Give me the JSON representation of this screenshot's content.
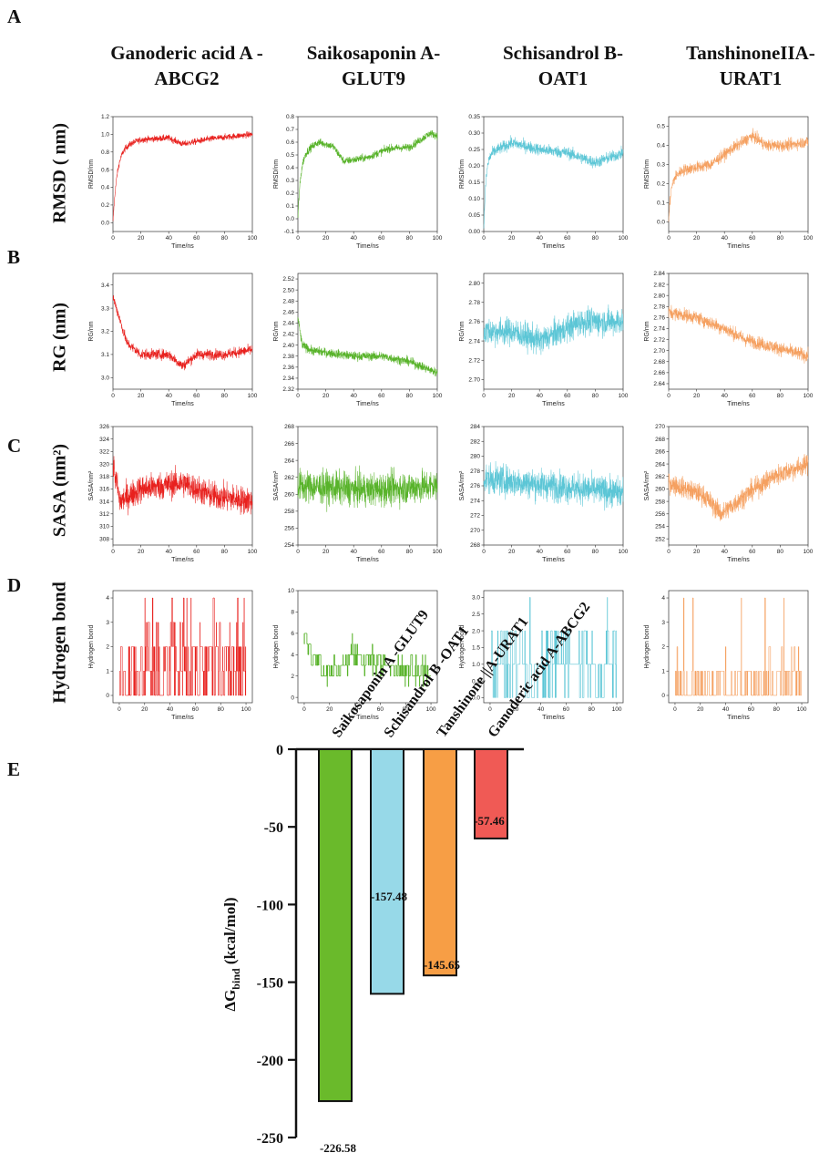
{
  "panels": {
    "A": "A",
    "B": "B",
    "C": "C",
    "D": "D",
    "E": "E"
  },
  "column_titles": [
    "Ganoderic acid A -\nABCG2",
    "Saikosaponin A-\nGLUT9",
    "Schisandrol B-\nOAT1",
    "TanshinoneIIA-\nURAT1"
  ],
  "row_labels": [
    "RMSD ( nm)",
    "RG (nm)",
    "SASA (nm²)",
    "Hydrogen bond"
  ],
  "colors": [
    "#e8211e",
    "#58b32a",
    "#5cc6d6",
    "#f5a060"
  ],
  "chart_data": [
    {
      "type": "line",
      "row": "RMSD",
      "compound": "Ganoderic acid A-ABCG2",
      "color": "#e8211e",
      "xlabel": "Time/ns",
      "ylabel": "RMSD/nm",
      "xlim": [
        0,
        100
      ],
      "xticks": [
        0,
        20,
        40,
        60,
        80,
        100
      ],
      "ylim": [
        -0.1,
        1.2
      ],
      "yticks": [
        "0.0",
        "0.2",
        "0.4",
        "0.6",
        "0.8",
        "1.0",
        "1.2"
      ],
      "start": 0.0,
      "rise": 0.84,
      "tau": 3,
      "trend": [
        [
          0,
          0.84
        ],
        [
          20,
          0.94
        ],
        [
          40,
          0.96
        ],
        [
          50,
          0.89
        ],
        [
          70,
          0.95
        ],
        [
          100,
          1.0
        ]
      ],
      "noise": 0.035,
      "style": "line"
    },
    {
      "type": "line",
      "row": "RMSD",
      "compound": "Saikosaponin A-GLUT9",
      "color": "#58b32a",
      "xlabel": "Time/ns",
      "ylabel": "RMSD/nm",
      "xlim": [
        0,
        100
      ],
      "xticks": [
        0,
        20,
        40,
        60,
        80,
        100
      ],
      "ylim": [
        -0.1,
        0.8
      ],
      "yticks": [
        "-0.1",
        "0.0",
        "0.1",
        "0.2",
        "0.3",
        "0.4",
        "0.5",
        "0.6",
        "0.7",
        "0.8"
      ],
      "start": 0.0,
      "rise": 0.5,
      "tau": 2,
      "trend": [
        [
          0,
          0.5
        ],
        [
          15,
          0.6
        ],
        [
          25,
          0.57
        ],
        [
          33,
          0.45
        ],
        [
          50,
          0.48
        ],
        [
          65,
          0.55
        ],
        [
          80,
          0.56
        ],
        [
          95,
          0.67
        ],
        [
          100,
          0.65
        ]
      ],
      "noise": 0.03,
      "style": "line"
    },
    {
      "type": "line",
      "row": "RMSD",
      "compound": "Schisandrol B-OAT1",
      "color": "#5cc6d6",
      "xlabel": "Time/ns",
      "ylabel": "RMSD/nm",
      "xlim": [
        0,
        100
      ],
      "xticks": [
        0,
        20,
        40,
        60,
        80,
        100
      ],
      "ylim": [
        0.0,
        0.35
      ],
      "yticks": [
        "0.00",
        "0.05",
        "0.10",
        "0.15",
        "0.20",
        "0.25",
        "0.30",
        "0.35"
      ],
      "start": 0.0,
      "rise": 0.23,
      "tau": 1.5,
      "trend": [
        [
          0,
          0.23
        ],
        [
          20,
          0.27
        ],
        [
          40,
          0.25
        ],
        [
          60,
          0.24
        ],
        [
          80,
          0.21
        ],
        [
          100,
          0.24
        ]
      ],
      "noise": 0.018,
      "style": "line"
    },
    {
      "type": "line",
      "row": "RMSD",
      "compound": "TanshinoneIIA-URAT1",
      "color": "#f5a060",
      "xlabel": "Time/ns",
      "ylabel": "RMSD/nm",
      "xlim": [
        0,
        100
      ],
      "xticks": [
        0,
        20,
        40,
        60,
        80,
        100
      ],
      "ylim": [
        -0.05,
        0.55
      ],
      "yticks": [
        "0.0",
        "0.1",
        "0.2",
        "0.3",
        "0.4",
        "0.5"
      ],
      "start": 0.0,
      "rise": 0.22,
      "tau": 1.5,
      "trend": [
        [
          0,
          0.22
        ],
        [
          10,
          0.27
        ],
        [
          30,
          0.3
        ],
        [
          45,
          0.38
        ],
        [
          60,
          0.45
        ],
        [
          70,
          0.4
        ],
        [
          85,
          0.4
        ],
        [
          100,
          0.42
        ]
      ],
      "noise": 0.03,
      "style": "line"
    },
    {
      "type": "line",
      "row": "RG",
      "compound": "Ganoderic acid A-ABCG2",
      "color": "#e8211e",
      "xlabel": "Time/ns",
      "ylabel": "RG/nm",
      "xlim": [
        0,
        100
      ],
      "xticks": [
        0,
        20,
        40,
        60,
        80,
        100
      ],
      "ylim": [
        2.95,
        3.45
      ],
      "yticks": [
        "3.0",
        "3.1",
        "3.2",
        "3.3",
        "3.4"
      ],
      "trend": [
        [
          0,
          3.35
        ],
        [
          5,
          3.25
        ],
        [
          10,
          3.15
        ],
        [
          20,
          3.1
        ],
        [
          40,
          3.1
        ],
        [
          50,
          3.05
        ],
        [
          60,
          3.1
        ],
        [
          80,
          3.1
        ],
        [
          100,
          3.12
        ]
      ],
      "noise": 0.022,
      "style": "line"
    },
    {
      "type": "line",
      "row": "RG",
      "compound": "Saikosaponin A-GLUT9",
      "color": "#58b32a",
      "xlabel": "Time/ns",
      "ylabel": "RG/nm",
      "xlim": [
        0,
        100
      ],
      "xticks": [
        0,
        20,
        40,
        60,
        80,
        100
      ],
      "ylim": [
        2.32,
        2.53
      ],
      "yticks": [
        "2.32",
        "2.34",
        "2.36",
        "2.38",
        "2.40",
        "2.42",
        "2.44",
        "2.46",
        "2.48",
        "2.50",
        "2.52"
      ],
      "trend": [
        [
          0,
          2.45
        ],
        [
          3,
          2.4
        ],
        [
          10,
          2.39
        ],
        [
          40,
          2.38
        ],
        [
          60,
          2.38
        ],
        [
          80,
          2.37
        ],
        [
          100,
          2.35
        ]
      ],
      "noise": 0.008,
      "style": "line"
    },
    {
      "type": "line",
      "row": "RG",
      "compound": "Schisandrol B-OAT1",
      "color": "#5cc6d6",
      "xlabel": "Time/ns",
      "ylabel": "RG/nm",
      "xlim": [
        0,
        100
      ],
      "xticks": [
        0,
        20,
        40,
        60,
        80,
        100
      ],
      "ylim": [
        2.69,
        2.81
      ],
      "yticks": [
        "2.70",
        "2.72",
        "2.74",
        "2.76",
        "2.78",
        "2.80"
      ],
      "trend": [
        [
          0,
          2.75
        ],
        [
          20,
          2.75
        ],
        [
          40,
          2.74
        ],
        [
          55,
          2.75
        ],
        [
          70,
          2.76
        ],
        [
          100,
          2.76
        ]
      ],
      "noise": 0.014,
      "style": "line"
    },
    {
      "type": "line",
      "row": "RG",
      "compound": "TanshinoneIIA-URAT1",
      "color": "#f5a060",
      "xlabel": "Time/ns",
      "ylabel": "RG/nm",
      "xlim": [
        0,
        100
      ],
      "xticks": [
        0,
        20,
        40,
        60,
        80,
        100
      ],
      "ylim": [
        2.63,
        2.84
      ],
      "yticks": [
        "2.64",
        "2.66",
        "2.68",
        "2.70",
        "2.72",
        "2.74",
        "2.76",
        "2.78",
        "2.80",
        "2.82",
        "2.84"
      ],
      "trend": [
        [
          0,
          2.77
        ],
        [
          20,
          2.76
        ],
        [
          40,
          2.74
        ],
        [
          55,
          2.72
        ],
        [
          70,
          2.71
        ],
        [
          100,
          2.69
        ]
      ],
      "noise": 0.012,
      "style": "line"
    },
    {
      "type": "line",
      "row": "SASA",
      "compound": "Ganoderic acid A-ABCG2",
      "color": "#e8211e",
      "xlabel": "Time/ns",
      "ylabel": "SASA/nm²",
      "xlim": [
        0,
        100
      ],
      "xticks": [
        0,
        20,
        40,
        60,
        80,
        100
      ],
      "ylim": [
        307,
        326
      ],
      "yticks": [
        "308",
        "310",
        "312",
        "314",
        "316",
        "318",
        "320",
        "322",
        "324",
        "326"
      ],
      "trend": [
        [
          0,
          320
        ],
        [
          5,
          314
        ],
        [
          20,
          316
        ],
        [
          50,
          317
        ],
        [
          70,
          315
        ],
        [
          100,
          314
        ]
      ],
      "noise": 2.2,
      "style": "line"
    },
    {
      "type": "line",
      "row": "SASA",
      "compound": "Saikosaponin A-GLUT9",
      "color": "#58b32a",
      "xlabel": "Time/ns",
      "ylabel": "SASA/nm²",
      "xlim": [
        0,
        100
      ],
      "xticks": [
        0,
        20,
        40,
        60,
        80,
        100
      ],
      "ylim": [
        254,
        268
      ],
      "yticks": [
        "254",
        "256",
        "258",
        "260",
        "262",
        "264",
        "266",
        "268"
      ],
      "trend": [
        [
          0,
          261
        ],
        [
          50,
          260.5
        ],
        [
          100,
          261
        ]
      ],
      "noise": 1.9,
      "style": "line"
    },
    {
      "type": "line",
      "row": "SASA",
      "compound": "Schisandrol B-OAT1",
      "color": "#5cc6d6",
      "xlabel": "Time/ns",
      "ylabel": "SASA/nm²",
      "xlim": [
        0,
        100
      ],
      "xticks": [
        0,
        20,
        40,
        60,
        80,
        100
      ],
      "ylim": [
        268,
        284
      ],
      "yticks": [
        "268",
        "270",
        "272",
        "274",
        "276",
        "278",
        "280",
        "282",
        "284"
      ],
      "trend": [
        [
          0,
          277
        ],
        [
          50,
          276
        ],
        [
          100,
          275
        ]
      ],
      "noise": 2.0,
      "style": "line"
    },
    {
      "type": "line",
      "row": "SASA",
      "compound": "TanshinoneIIA-URAT1",
      "color": "#f5a060",
      "xlabel": "Time/ns",
      "ylabel": "SASA/nm²",
      "xlim": [
        0,
        100
      ],
      "xticks": [
        0,
        20,
        40,
        60,
        80,
        100
      ],
      "ylim": [
        251,
        270
      ],
      "yticks": [
        "252",
        "254",
        "256",
        "258",
        "260",
        "262",
        "264",
        "266",
        "268",
        "270"
      ],
      "trend": [
        [
          0,
          261
        ],
        [
          25,
          259
        ],
        [
          38,
          256
        ],
        [
          55,
          259
        ],
        [
          75,
          262
        ],
        [
          100,
          264
        ]
      ],
      "noise": 1.6,
      "style": "line"
    },
    {
      "type": "bar",
      "row": "Hydrogen bond",
      "compound": "Ganoderic acid A-ABCG2",
      "color": "#e8211e",
      "xlabel": "Time/ns",
      "ylabel": "Hydrogen bond",
      "xlim": [
        -5,
        105
      ],
      "xticks": [
        0,
        20,
        40,
        60,
        80,
        100
      ],
      "ylim": [
        -0.3,
        4.3
      ],
      "yticks": [
        "0",
        "1",
        "2",
        "3",
        "4"
      ],
      "levels": [
        [
          0,
          0.3
        ],
        [
          1,
          0.25
        ],
        [
          2,
          0.35
        ],
        [
          3,
          0.06
        ],
        [
          4,
          0.04
        ]
      ],
      "style": "spikes"
    },
    {
      "type": "bar",
      "row": "Hydrogen bond",
      "compound": "Saikosaponin A-GLUT9",
      "color": "#58b32a",
      "xlabel": "Time/ns",
      "ylabel": "Hydrogen bond",
      "xlim": [
        -5,
        105
      ],
      "xticks": [
        0,
        20,
        40,
        60,
        80,
        100
      ],
      "ylim": [
        -0.5,
        10
      ],
      "yticks": [
        "0",
        "2",
        "4",
        "6",
        "8",
        "10"
      ],
      "trend": [
        [
          0,
          6
        ],
        [
          5,
          4
        ],
        [
          15,
          2.5
        ],
        [
          25,
          2.5
        ],
        [
          35,
          4
        ],
        [
          60,
          3
        ],
        [
          100,
          2
        ]
      ],
      "noise": 1.2,
      "style": "steps"
    },
    {
      "type": "bar",
      "row": "Hydrogen bond",
      "compound": "Schisandrol B-OAT1",
      "color": "#5cc6d6",
      "xlabel": "Time/ns",
      "ylabel": "Hydrogen bond",
      "xlim": [
        -5,
        105
      ],
      "xticks": [
        0,
        20,
        40,
        60,
        80,
        100
      ],
      "ylim": [
        -0.15,
        3.2
      ],
      "yticks": [
        "0.0",
        "0.5",
        "1.0",
        "1.5",
        "2.0",
        "2.5",
        "3.0"
      ],
      "levels": [
        [
          0,
          0.2
        ],
        [
          1,
          0.6
        ],
        [
          2,
          0.18
        ],
        [
          3,
          0.02
        ]
      ],
      "style": "spikes"
    },
    {
      "type": "bar",
      "row": "Hydrogen bond",
      "compound": "TanshinoneIIA-URAT1",
      "color": "#f5a060",
      "xlabel": "Time/ns",
      "ylabel": "Hydrogen bond",
      "xlim": [
        -5,
        105
      ],
      "xticks": [
        0,
        20,
        40,
        60,
        80,
        100
      ],
      "ylim": [
        -0.3,
        4.3
      ],
      "yticks": [
        "0",
        "1",
        "2",
        "3",
        "4"
      ],
      "levels": [
        [
          0,
          0.55
        ],
        [
          1,
          0.4
        ],
        [
          2,
          0.04
        ],
        [
          4,
          0.01
        ]
      ],
      "style": "spikes"
    },
    {
      "type": "bar",
      "panel": "E",
      "title": "",
      "xlabel": "",
      "ylabel": "ΔG",
      "ylabel_sub": "bind",
      "ylabel_unit": " (kcal/mol)",
      "ylim": [
        -250,
        0
      ],
      "yticks": [
        "0",
        "-50",
        "-100",
        "-150",
        "-200",
        "-250"
      ],
      "categories": [
        "Saikosaponin A -GLUT9",
        "Schisandrol B -OAT1",
        "Tanshinone ||A-URAT1",
        "Ganoderic acid A-ABCG2"
      ],
      "values": [
        -226.58,
        -157.48,
        -145.65,
        -57.46
      ],
      "value_labels": [
        "-226.58",
        "-157.48",
        "-145.65",
        "-57.46"
      ],
      "colors": [
        "#6aba2b",
        "#97d9e8",
        "#f79e45",
        "#f05a55"
      ]
    }
  ]
}
